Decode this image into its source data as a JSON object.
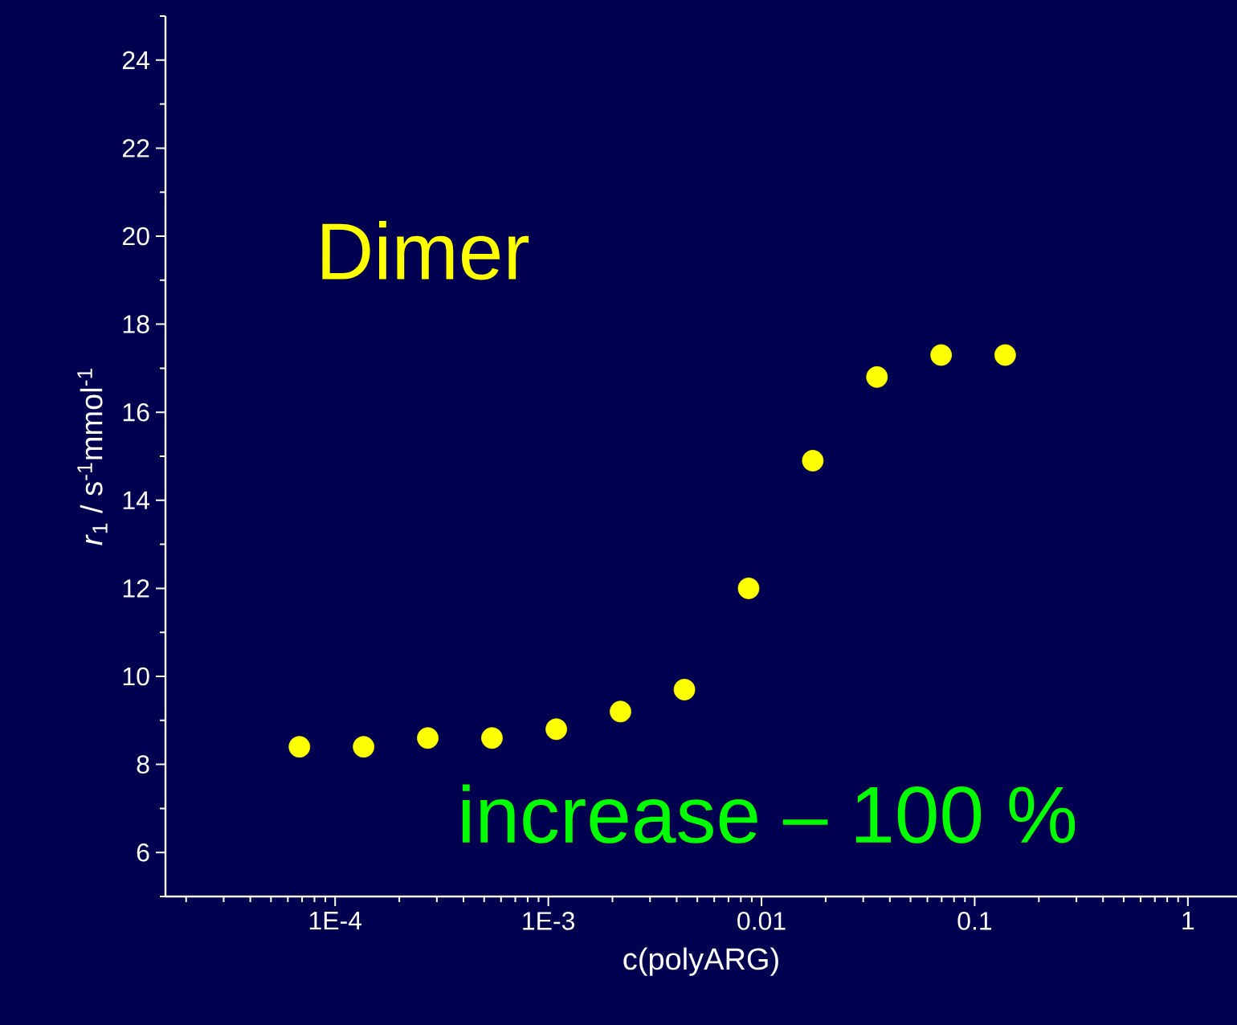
{
  "chart_data": {
    "type": "scatter",
    "xlabel": "c(polyARG)",
    "ylabel": "*r*$_{1}$ / s$^{-1}$mmol$^{-1}$",
    "x": [
      6.8e-05,
      0.000136,
      0.000272,
      0.000544,
      0.00109,
      0.00218,
      0.00435,
      0.0087,
      0.0174,
      0.0348,
      0.0696,
      0.139
    ],
    "series": [
      {
        "color": "#ffff00",
        "values": [
          8.4,
          8.4,
          8.6,
          8.6,
          8.8,
          9.2,
          9.7,
          12.0,
          14.9,
          16.8,
          17.3,
          17.3
        ]
      }
    ],
    "log": "x",
    "xlim": [
      1.6e-05,
      1.7
    ],
    "xticks": [
      {
        "value": 0.0001,
        "label": "1E-4"
      },
      {
        "value": 0.001,
        "label": "1E-3"
      },
      0.01,
      0.1,
      1
    ],
    "ylim": [
      5,
      25
    ],
    "yticks": [
      6,
      8,
      10,
      12,
      14,
      16,
      18,
      20,
      22,
      24
    ],
    "marker": "circle",
    "grid": false,
    "legend": false,
    "annotations": [
      "Dimer",
      "increase – 100 %"
    ]
  }
}
